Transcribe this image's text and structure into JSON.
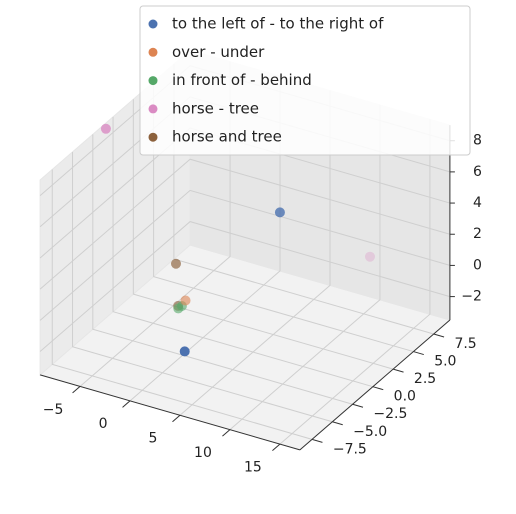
{
  "chart_data": {
    "type": "scatter3d",
    "series": [
      {
        "name": "to the left of - to the right of",
        "color": "#4c72b0",
        "x": [
          3.2,
          6.4
        ],
        "y": [
          -6.2,
          1.6
        ],
        "z": [
          -1,
          5
        ]
      },
      {
        "name": "over - under",
        "color": "#dd8452",
        "x": [
          0.2
        ],
        "y": [
          -2.4
        ],
        "z": [
          0
        ]
      },
      {
        "name": "in front of - behind",
        "color": "#55a868",
        "x": [
          0,
          -0.2
        ],
        "y": [
          -2.6,
          -2.8
        ],
        "z": [
          -0.3,
          -0.4
        ]
      },
      {
        "name": "horse - tree",
        "color": "#da8bc3",
        "x": [
          -8.5,
          11.6
        ],
        "y": [
          -1.5,
          6.3
        ],
        "z": [
          9,
          1
        ]
      },
      {
        "name": "horse and tree",
        "color": "#8c613c",
        "x": [
          -1,
          -0.3
        ],
        "y": [
          -2.1,
          -2.7
        ],
        "z": [
          2,
          -0.3
        ]
      }
    ],
    "xlim": [
      -9,
      17
    ],
    "ylim": [
      -9,
      9.5
    ],
    "zlim": [
      -3.5,
      9
    ],
    "xticks": [
      {
        "value": -5,
        "label": "−5"
      },
      0,
      5,
      10,
      15
    ],
    "yticks": [
      {
        "value": -7.5,
        "label": "−7.5"
      },
      {
        "value": -5,
        "label": "−5.0"
      },
      {
        "value": -2.5,
        "label": "−2.5"
      },
      {
        "value": 0,
        "label": "0.0"
      },
      2.5,
      {
        "value": 5,
        "label": "5.0"
      },
      7.5
    ],
    "zticks": [
      {
        "value": -2,
        "label": "−2"
      },
      0,
      2,
      4,
      6,
      8
    ],
    "grid": true,
    "legend": "upper right"
  }
}
